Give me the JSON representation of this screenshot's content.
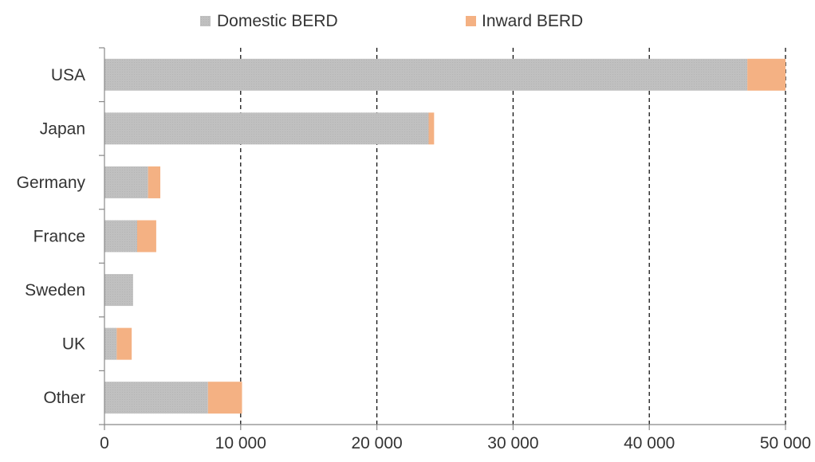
{
  "chart_data": {
    "type": "bar",
    "orientation": "horizontal",
    "stacked": true,
    "categories": [
      "USA",
      "Japan",
      "Germany",
      "France",
      "Sweden",
      "UK",
      "Other"
    ],
    "series": [
      {
        "name": "Domestic BERD",
        "color": "#c0c0c0",
        "values": [
          47200,
          23800,
          3200,
          2400,
          2100,
          900,
          7600
        ]
      },
      {
        "name": "Inward BERD",
        "color": "#f4b183",
        "values": [
          2800,
          400,
          900,
          1400,
          0,
          1100,
          2500
        ]
      }
    ],
    "xlim": [
      0,
      50000
    ],
    "xticks": [
      0,
      10000,
      20000,
      30000,
      40000,
      50000
    ],
    "xtick_labels": [
      "0",
      "10 000",
      "20 000",
      "30 000",
      "40 000",
      "50 000"
    ],
    "grid": "vertical dashed",
    "legend_position": "top"
  }
}
